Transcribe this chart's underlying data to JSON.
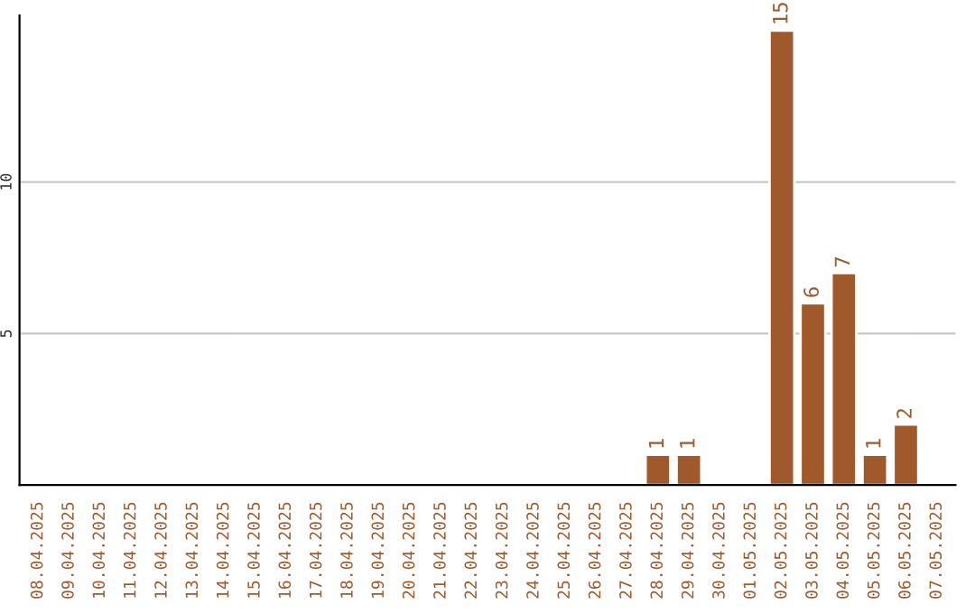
{
  "chart_data": {
    "type": "bar",
    "categories": [
      "08.04.2025",
      "09.04.2025",
      "10.04.2025",
      "11.04.2025",
      "12.04.2025",
      "13.04.2025",
      "14.04.2025",
      "15.04.2025",
      "16.04.2025",
      "17.04.2025",
      "18.04.2025",
      "19.04.2025",
      "20.04.2025",
      "21.04.2025",
      "22.04.2025",
      "23.04.2025",
      "24.04.2025",
      "25.04.2025",
      "26.04.2025",
      "27.04.2025",
      "28.04.2025",
      "29.04.2025",
      "30.04.2025",
      "01.05.2025",
      "02.05.2025",
      "03.05.2025",
      "04.05.2025",
      "05.05.2025",
      "06.05.2025",
      "07.05.2025"
    ],
    "values": [
      null,
      null,
      null,
      null,
      null,
      null,
      null,
      null,
      null,
      null,
      null,
      null,
      null,
      null,
      null,
      null,
      null,
      null,
      null,
      null,
      1,
      1,
      null,
      null,
      15,
      6,
      7,
      1,
      2,
      null
    ],
    "value_labels": [
      null,
      null,
      null,
      null,
      null,
      null,
      null,
      null,
      null,
      null,
      null,
      null,
      null,
      null,
      null,
      null,
      null,
      null,
      null,
      null,
      "1",
      "1",
      null,
      null,
      "15",
      "6",
      "7",
      "1",
      "2",
      null
    ],
    "color": "#a0592a",
    "ylim": [
      0,
      15.5
    ],
    "yticks": [
      5,
      10
    ],
    "grid": "y",
    "legend": false
  }
}
